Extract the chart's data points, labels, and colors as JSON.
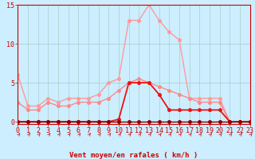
{
  "background_color": "#cceeff",
  "grid_color": "#aacccc",
  "x_values": [
    0,
    1,
    2,
    3,
    4,
    5,
    6,
    7,
    8,
    9,
    10,
    11,
    12,
    13,
    14,
    15,
    16,
    17,
    18,
    19,
    20,
    21,
    22,
    23
  ],
  "series": [
    {
      "name": "line1_light_pink",
      "color": "#ff9999",
      "linewidth": 1.0,
      "markersize": 2.5,
      "values": [
        6.0,
        2.0,
        2.0,
        3.0,
        2.5,
        3.0,
        3.0,
        3.0,
        3.5,
        5.0,
        5.5,
        13.0,
        13.0,
        15.0,
        13.0,
        11.5,
        10.5,
        3.0,
        3.0,
        3.0,
        3.0,
        0.0,
        0.0,
        0.0
      ]
    },
    {
      "name": "line2_medium_pink",
      "color": "#ff8888",
      "linewidth": 1.0,
      "markersize": 2.5,
      "values": [
        2.5,
        1.5,
        1.5,
        2.5,
        2.0,
        2.0,
        2.5,
        2.5,
        2.5,
        3.0,
        4.0,
        5.0,
        5.5,
        5.0,
        4.5,
        4.0,
        3.5,
        3.0,
        2.5,
        2.5,
        2.5,
        0.0,
        0.0,
        0.0
      ]
    },
    {
      "name": "line3_red",
      "color": "#ee1111",
      "linewidth": 1.3,
      "markersize": 2.5,
      "values": [
        0.0,
        0.0,
        0.0,
        0.0,
        0.0,
        0.0,
        0.0,
        0.0,
        0.0,
        0.0,
        0.3,
        5.0,
        5.0,
        5.0,
        3.5,
        1.5,
        1.5,
        1.5,
        1.5,
        1.5,
        1.5,
        0.0,
        0.0,
        0.0
      ]
    },
    {
      "name": "line4_dark_red",
      "color": "#880000",
      "linewidth": 1.0,
      "markersize": 2.5,
      "values": [
        0.0,
        0.0,
        0.0,
        0.0,
        0.0,
        0.0,
        0.0,
        0.0,
        0.0,
        0.0,
        0.0,
        0.0,
        0.0,
        0.0,
        0.0,
        0.0,
        0.0,
        0.0,
        0.0,
        0.0,
        0.0,
        0.0,
        0.0,
        0.0
      ]
    }
  ],
  "xlabel": "Vent moyen/en rafales ( km/h )",
  "xlim": [
    0,
    23
  ],
  "ylim": [
    -0.3,
    15
  ],
  "yticks": [
    0,
    5,
    10,
    15
  ],
  "xticks": [
    0,
    1,
    2,
    3,
    4,
    5,
    6,
    7,
    8,
    9,
    10,
    11,
    12,
    13,
    14,
    15,
    16,
    17,
    18,
    19,
    20,
    21,
    22,
    23
  ],
  "xlabel_fontsize": 6.5,
  "tick_fontsize": 6.0,
  "arrow_color": "#cc3333",
  "tick_color": "#cc0000",
  "spine_color": "#cc0000"
}
